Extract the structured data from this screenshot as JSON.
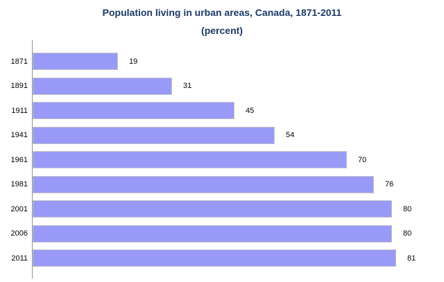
{
  "chart": {
    "title_line1": "Population living in urban areas, Canada, 1871-2011",
    "title_line2": "(percent)"
  },
  "chart_data": {
    "type": "bar",
    "orientation": "horizontal",
    "title": "Population living in urban areas, Canada, 1871-2011 (percent)",
    "categories": [
      "1871",
      "1891",
      "1911",
      "1941",
      "1961",
      "1981",
      "2001",
      "2006",
      "2011"
    ],
    "values": [
      19,
      31,
      45,
      54,
      70,
      76,
      80,
      80,
      81
    ],
    "xlabel": "",
    "ylabel": "",
    "xlim": [
      0,
      92
    ],
    "grid": false,
    "legend": false,
    "data_labels": true,
    "colors": {
      "bar_fill": "#9999F8",
      "bar_border": "#C6C6C6",
      "title_text": "#1A3966",
      "label_text": "#000000",
      "axis_line": "#909090",
      "background": "#FFFFFF"
    }
  }
}
